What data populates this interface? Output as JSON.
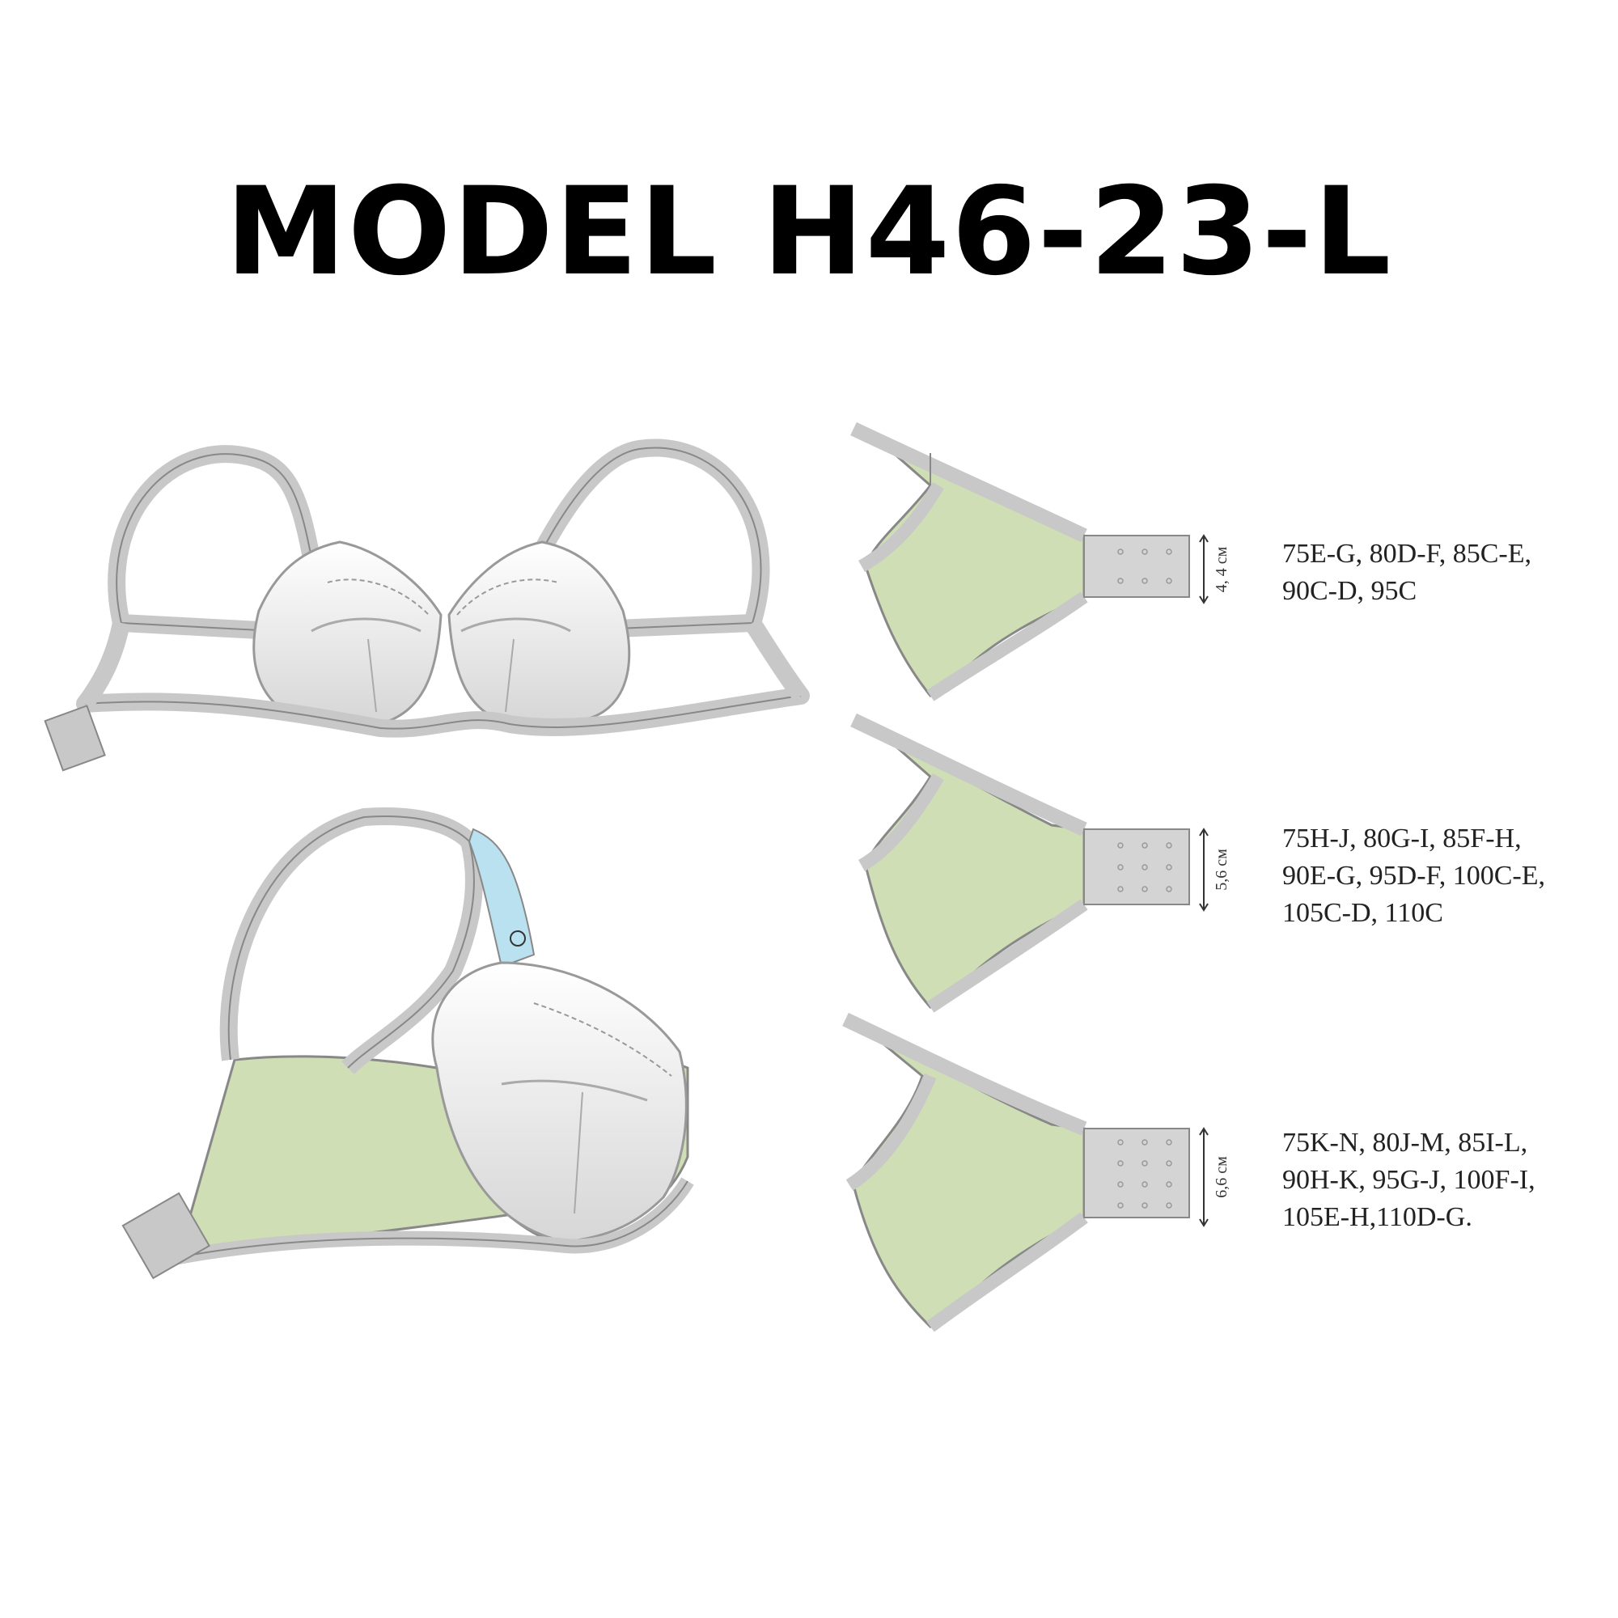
{
  "title": "MODEL H46-23-L",
  "variants": [
    {
      "dimension": "4, 4 см",
      "hooks": "3x2",
      "sizes_lines": [
        "75E-G, 80D-F, 85C-E,",
        "90C-D, 95C"
      ]
    },
    {
      "dimension": "5,6 см",
      "hooks": "3x3",
      "sizes_lines": [
        "75H-J, 80G-I, 85F-H,",
        "90E-G, 95D-F, 100C-E,",
        "105C-D, 110C"
      ]
    },
    {
      "dimension": "6,6 см",
      "hooks": "3x4",
      "sizes_lines": [
        "75K-N, 80J-M, 85I-L,",
        "90H-K, 95G-J, 100F-I,",
        "105E-H,110D-G."
      ]
    }
  ],
  "colors": {
    "band_green": "#cfdeb4",
    "trim_gray": "#c8c8c8",
    "outline": "#888888",
    "label_blue": "#b9e1ef",
    "cup_white": "#f2f2f2"
  }
}
